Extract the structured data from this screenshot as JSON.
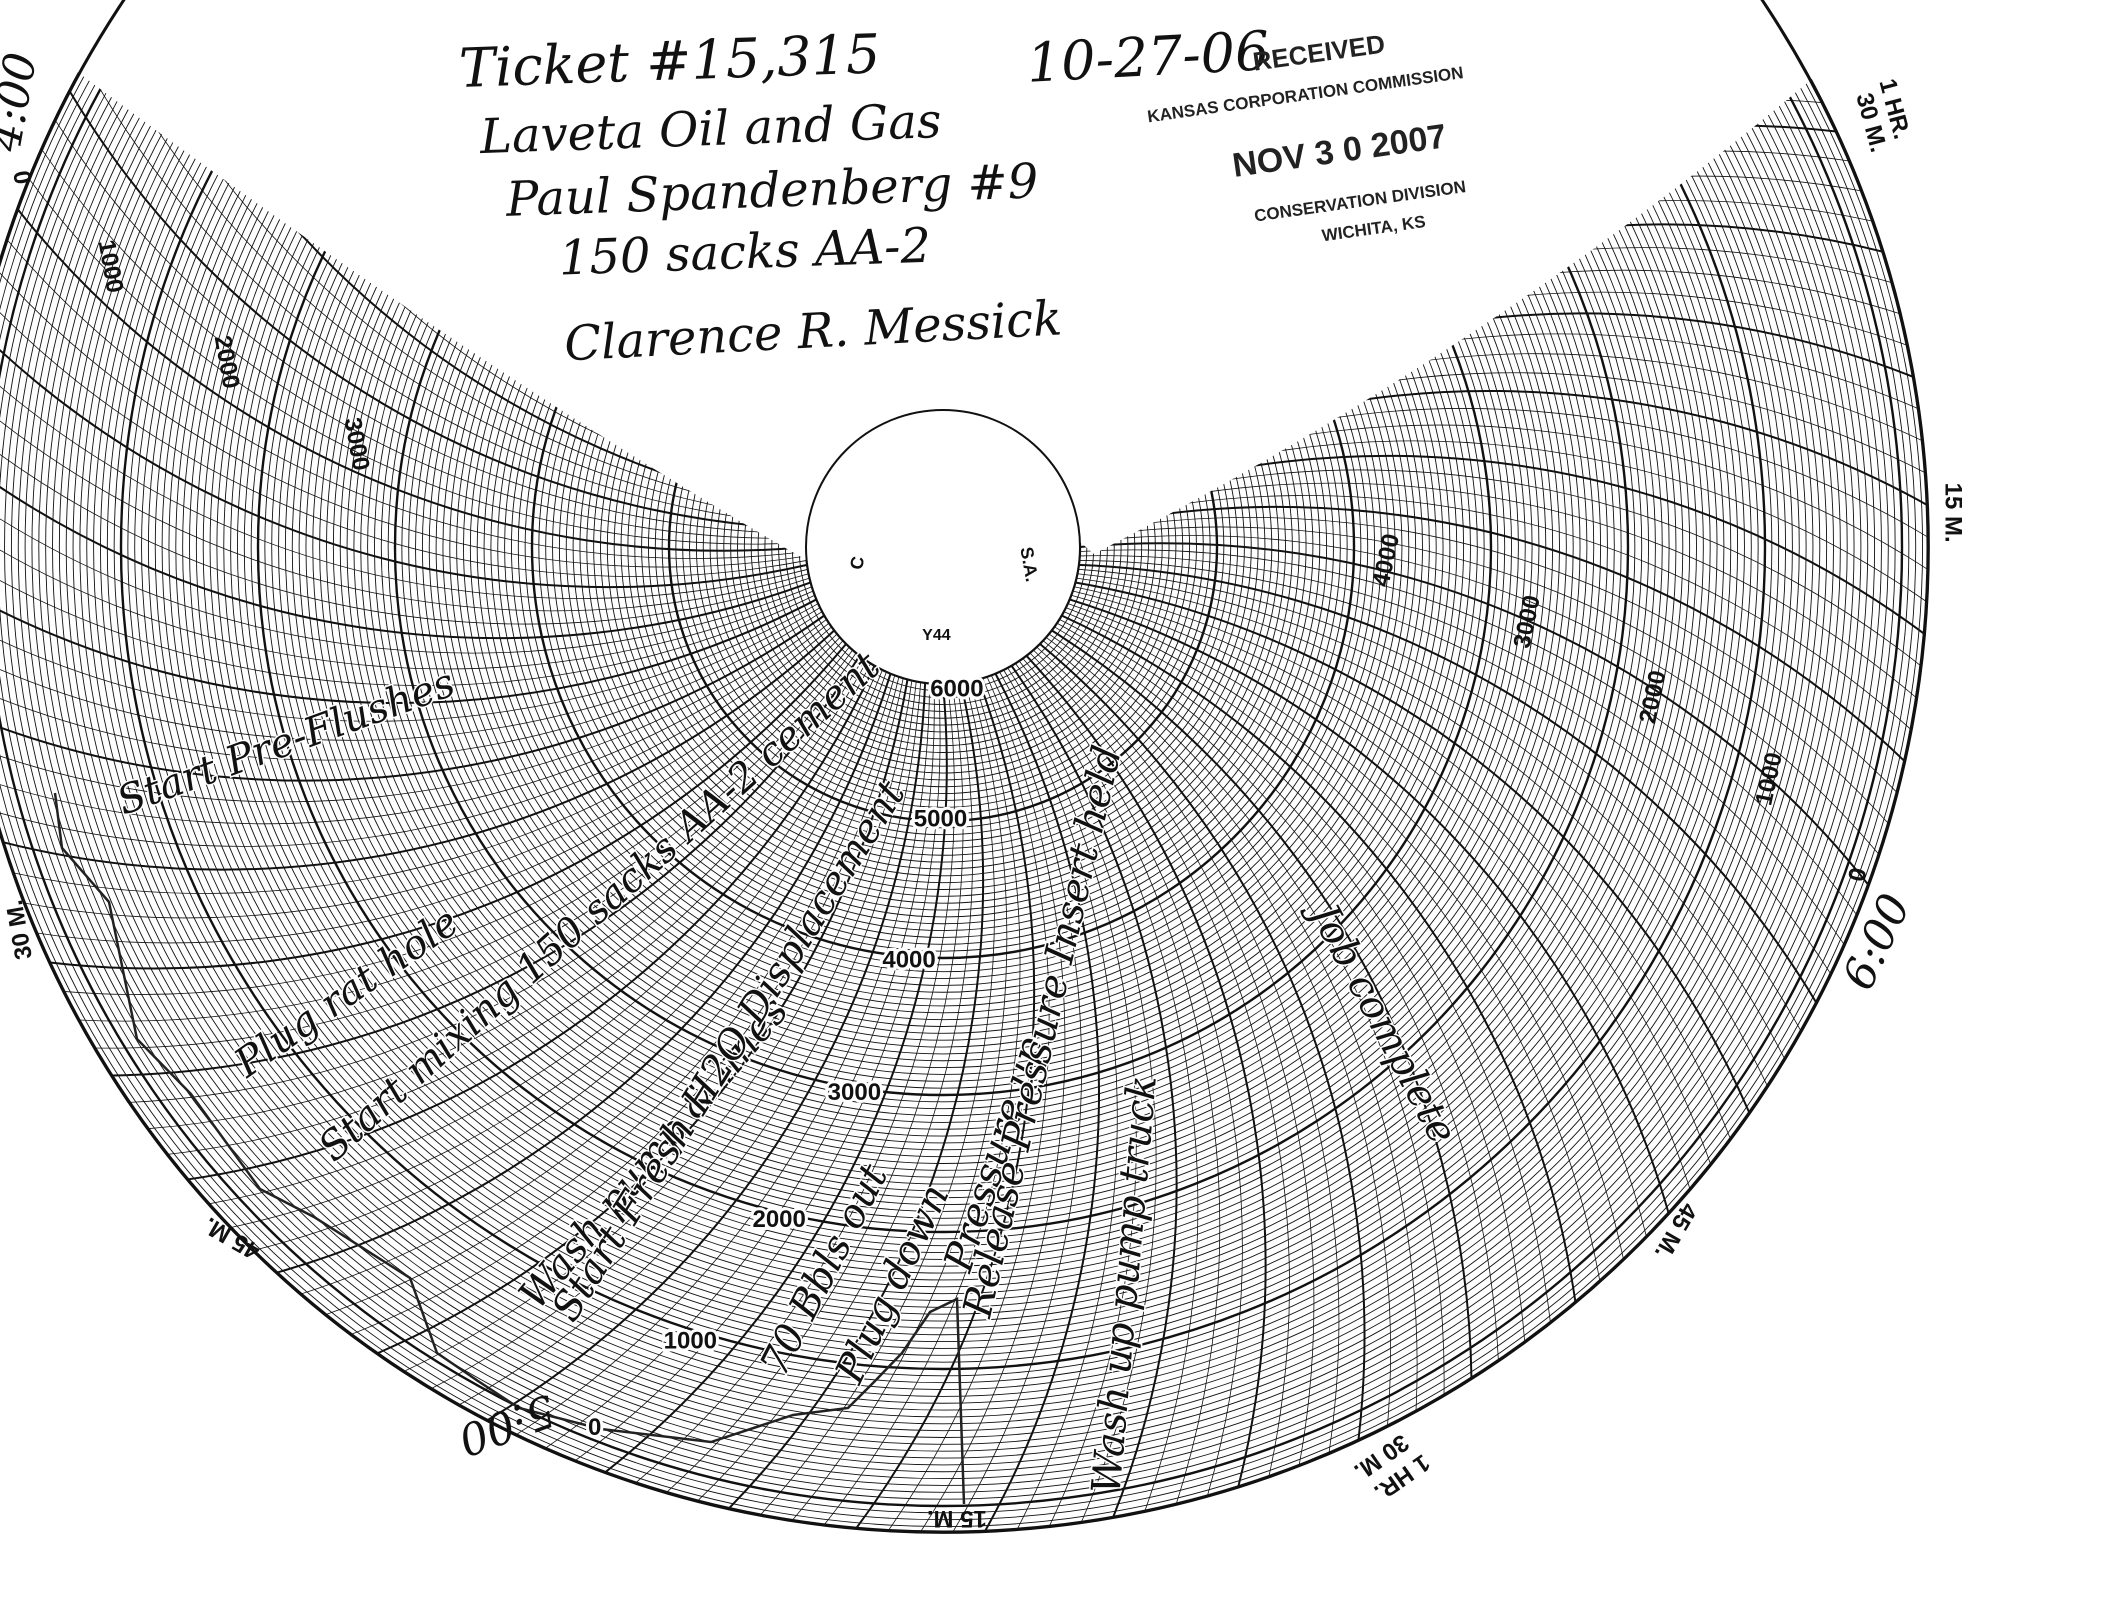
{
  "header": {
    "lines": [
      "Ticket #15,315",
      "10-27-06",
      "Laveta Oil and Gas",
      "Paul Spandenberg #9",
      "150 sacks AA-2",
      "Clarence R. Messick"
    ]
  },
  "stamp": {
    "lines": [
      "RECEIVED",
      "KANSAS CORPORATION COMMISSION",
      "NOV 3 0 2007",
      "CONSERVATION DIVISION",
      "WICHITA, KS"
    ]
  },
  "chart": {
    "center_labels": [
      "Y44",
      "S.A.",
      "C"
    ],
    "ring_labels_lower": [
      "6000",
      "5000",
      "4000",
      "3000",
      "2000",
      "1000",
      "0"
    ],
    "ring_labels_right": [
      "4000",
      "3000",
      "2000",
      "1000",
      "0"
    ],
    "ring_labels_left": [
      "0",
      "1000",
      "2000",
      "3000"
    ],
    "time_labels": [
      "15 M.",
      "30 M.",
      "1 HR.",
      "45 M.",
      "15 M.",
      "30 M.",
      "1 HR.",
      "45 M.",
      "30 M."
    ],
    "clock_labels": [
      "6:00",
      "5:00",
      "4:00"
    ]
  },
  "annotations": [
    "Start Pre-Flushes",
    "Plug rat hole",
    "Start mixing 150 sacks AA-2 cement",
    "Wash pump & lines",
    "Start Fresh H2O Displacement",
    "70 Bbls out",
    "Plug down",
    "Pressure up",
    "Release Pressure Insert held",
    "Wash up pump truck",
    "Job complete"
  ]
}
